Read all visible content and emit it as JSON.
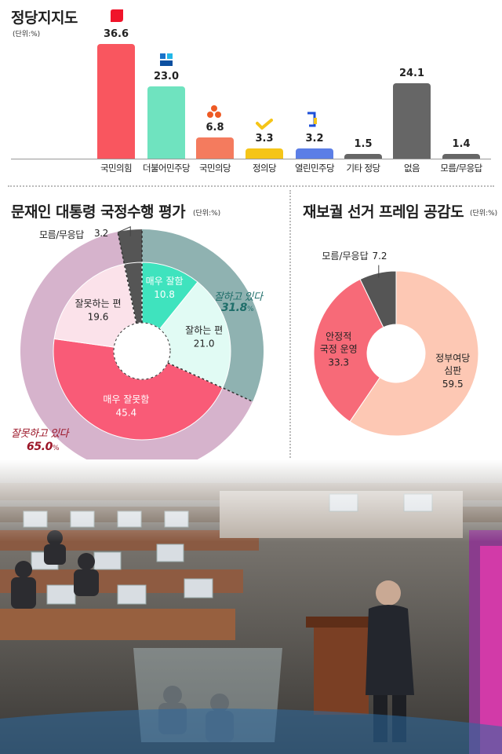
{
  "party_support": {
    "title": "정당지지도",
    "unit": "(단위:%)"
  },
  "eval": {
    "title": "문재인 대통령 국정수행 평가",
    "unit": "(단위:%)",
    "dont_know_label": "모름/무응답",
    "dont_know_value": "3.2",
    "positive_label": "잘하고 있다",
    "positive_value": "31.8",
    "positive_unit": "%",
    "negative_label": "잘못하고 있다",
    "negative_value": "65.0",
    "negative_unit": "%"
  },
  "frame": {
    "title": "재보궐 선거 프레임 공감도",
    "unit": "(단위:%)"
  },
  "colors": {
    "people_power": "#f9565f",
    "democratic": "#6fe3bf",
    "peoples_party": "#f47b5e",
    "justice": "#f5c518",
    "open_democratic": "#5b7ee6",
    "other": "#666666",
    "positive_outer": "#8fb2b1",
    "negative_outer": "#d6b3cc",
    "very_good": "#3fe3be",
    "good": "#e1fbf4",
    "bad": "#fbe2ea",
    "very_bad": "#f95b77",
    "dont_know": "#555555",
    "judgement": "#fdc8b4",
    "stability": "#f76a78"
  },
  "chart_data": [
    {
      "type": "bar",
      "title": "정당지지도",
      "categories": [
        "국민의힘",
        "더불어민주당",
        "국민의당",
        "정의당",
        "열린민주당",
        "기타 정당",
        "없음",
        "모름/무응답"
      ],
      "values": [
        36.6,
        23.0,
        6.8,
        3.3,
        3.2,
        1.5,
        24.1,
        1.4
      ],
      "value_labels": [
        "36.6",
        "23.0",
        "6.8",
        "3.3",
        "3.2",
        "1.5",
        "24.1",
        "1.4"
      ],
      "icons": [
        "people-power-logo-icon",
        "democratic-party-logo-icon",
        "peoples-party-logo-icon",
        "justice-party-logo-icon",
        "open-democratic-logo-icon",
        "",
        "",
        ""
      ],
      "ylim": [
        0,
        40
      ]
    },
    {
      "type": "pie",
      "title": "문재인 대통령 국정수행 평가",
      "inner": [
        {
          "label": "매우 잘함",
          "value": 10.8,
          "display": "10.8"
        },
        {
          "label": "잘하는 편",
          "value": 21.0,
          "display": "21.0"
        },
        {
          "label": "매우 잘못함",
          "value": 45.4,
          "display": "45.4"
        },
        {
          "label": "잘못하는 편",
          "value": 19.6,
          "display": "19.6"
        },
        {
          "label": "모름/무응답",
          "value": 3.2,
          "display": "3.2"
        }
      ],
      "outer": [
        {
          "label": "잘하고 있다",
          "value": 31.8
        },
        {
          "label": "잘못하고 있다",
          "value": 65.0
        },
        {
          "label": "모름/무응답",
          "value": 3.2
        }
      ]
    },
    {
      "type": "pie",
      "title": "재보궐 선거 프레임 공감도",
      "slices": [
        {
          "label": "정부여당 심판",
          "line1": "정부여당",
          "line2": "심판",
          "value": 59.5,
          "display": "59.5"
        },
        {
          "label": "안정적 국정 운영",
          "line1": "안정적",
          "line2": "국정 운영",
          "value": 33.3,
          "display": "33.3"
        },
        {
          "label": "모름/무응답",
          "value": 7.2,
          "display": "7.2"
        }
      ]
    }
  ]
}
